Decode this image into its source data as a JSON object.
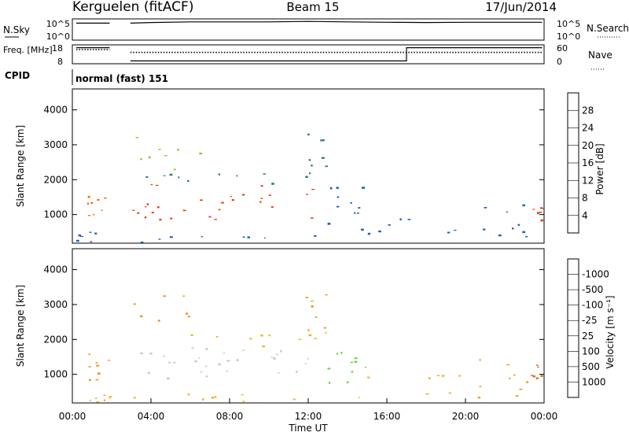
{
  "header": {
    "station": "Kerguelen (fitACF)",
    "beam": "Beam 15",
    "date": "17/Jun/2014"
  },
  "chart_data": [
    {
      "type": "line",
      "panel": "noise",
      "left_label": "N.Sky",
      "right_label": "N.Search",
      "left_ticks": [
        "10^5",
        "10^0"
      ],
      "right_ticks": [
        "10^5",
        "10^0"
      ],
      "gaps_ut_hours": [
        [
          1.9,
          2.95
        ]
      ],
      "series": [
        {
          "name": "N.Sky",
          "style": "solid",
          "segments": [
            {
              "x": [
                0.2,
                1.9
              ],
              "y": [
                0.8,
                0.8
              ]
            },
            {
              "x": [
                2.95,
                4.0,
                6.0,
                8.0,
                10.0,
                12.0,
                14.0,
                16.0,
                18.0,
                20.0,
                22.0,
                23.9
              ],
              "y": [
                0.8,
                0.83,
                0.86,
                0.86,
                0.86,
                0.88,
                0.86,
                0.84,
                0.83,
                0.84,
                0.84,
                0.84
              ]
            }
          ]
        },
        {
          "name": "N.Search",
          "style": "dotted",
          "segments": []
        }
      ]
    },
    {
      "type": "line",
      "panel": "frequency",
      "left_label": "Freq. [MHz]",
      "right_label": "Nave",
      "left_ticks": [
        "18",
        "8"
      ],
      "right_ticks": [
        "60",
        "0"
      ],
      "series": [
        {
          "name": "Freq.",
          "style": "solid",
          "segments": [
            {
              "x": [
                0.2,
                1.9
              ],
              "y": [
                0.85,
                0.85
              ]
            },
            {
              "x": [
                2.95,
                17.0,
                17.0,
                23.9
              ],
              "y": [
                0.15,
                0.15,
                0.85,
                0.85
              ]
            }
          ]
        },
        {
          "name": "Nave",
          "style": "dotted",
          "segments": [
            {
              "x": [
                0.2,
                1.9
              ],
              "y": [
                0.75,
                0.75
              ]
            },
            {
              "x": [
                2.95,
                23.9
              ],
              "y": [
                0.6,
                0.6
              ]
            }
          ]
        }
      ]
    },
    {
      "type": "text",
      "panel": "cpid",
      "label": "CPID",
      "value": "normal (fast) 151"
    },
    {
      "type": "heatmap",
      "panel": "power",
      "ylabel": "Slant Range [km]",
      "y_ticks": [
        "1000",
        "2000",
        "3000",
        "4000"
      ],
      "ylim": [
        180,
        4600
      ],
      "colorbar": {
        "label": "Power [dB]",
        "ticks": [
          "4",
          "8",
          "12",
          "16",
          "20",
          "24",
          "28"
        ],
        "colors": [
          "#1230ff",
          "#1e5fbf",
          "#2d7f6a",
          "#3e9c3e",
          "#8cc83c",
          "#e6d23c",
          "#f0a028",
          "#f06e14",
          "#e63c14",
          "#e61414"
        ]
      },
      "regions": [
        {
          "t0": 0.2,
          "t1": 1.9,
          "r0": 200,
          "r1": 520,
          "color": "#1e5fbf",
          "density": 0.35
        },
        {
          "t0": 0.7,
          "t1": 1.9,
          "r0": 800,
          "r1": 1600,
          "color": "#f06e14",
          "density": 0.6
        },
        {
          "t0": 3.0,
          "t1": 12.2,
          "r0": 800,
          "r1": 1900,
          "color": "#e63c14",
          "density": 0.65
        },
        {
          "t0": 3.0,
          "t1": 12.4,
          "r0": 1900,
          "r1": 2200,
          "color": "#2d7f6a",
          "density": 0.4
        },
        {
          "t0": 3.0,
          "t1": 6.5,
          "r0": 2300,
          "r1": 3300,
          "color": "#8cc83c",
          "density": 0.15
        },
        {
          "t0": 3.0,
          "t1": 12.4,
          "r0": 200,
          "r1": 500,
          "color": "#1e5fbf",
          "density": 0.25
        },
        {
          "t0": 11.8,
          "t1": 12.9,
          "r0": 2200,
          "r1": 3400,
          "color": "#2d7f6a",
          "density": 0.35
        },
        {
          "t0": 12.3,
          "t1": 15.0,
          "r0": 700,
          "r1": 1800,
          "color": "#1e5fbf",
          "density": 0.45
        },
        {
          "t0": 14.5,
          "t1": 20.0,
          "r0": 300,
          "r1": 1000,
          "color": "#1e5fbf",
          "density": 0.18
        },
        {
          "t0": 20.5,
          "t1": 23.3,
          "r0": 300,
          "r1": 1500,
          "color": "#1e5fbf",
          "density": 0.3
        },
        {
          "t0": 23.3,
          "t1": 23.9,
          "r0": 800,
          "r1": 1300,
          "color": "#e63c14",
          "density": 0.7
        }
      ]
    },
    {
      "type": "heatmap",
      "panel": "velocity",
      "ylabel": "Slant Range [km]",
      "xlabel": "Time UT",
      "y_ticks": [
        "1000",
        "2000",
        "3000",
        "4000"
      ],
      "x_ticks": [
        "00:00",
        "04:00",
        "08:00",
        "12:00",
        "16:00",
        "20:00",
        "00:00"
      ],
      "xlim": [
        0,
        24
      ],
      "ylim": [
        180,
        4600
      ],
      "colorbar": {
        "label": "Velocity [m s⁻¹]",
        "ticks": [
          "1000",
          "500",
          "100",
          "25",
          "-25",
          "-100",
          "-500",
          "-1000"
        ],
        "colors": [
          "#1230ff",
          "#1e5fbf",
          "#2d7f6a",
          "#3e9c3e",
          "#6ad23c",
          "#c8c8c0",
          "#f0b428",
          "#f09614",
          "#e66e14",
          "#e63c14",
          "#e61414"
        ]
      },
      "regions": [
        {
          "t0": 0.2,
          "t1": 1.9,
          "r0": 200,
          "r1": 520,
          "color": "#f0b428",
          "density": 0.3
        },
        {
          "t0": 0.7,
          "t1": 1.9,
          "r0": 800,
          "r1": 1600,
          "color": "#f09614",
          "density": 0.6
        },
        {
          "t0": 3.0,
          "t1": 12.2,
          "r0": 800,
          "r1": 1800,
          "color": "#c8c8c0",
          "density": 0.75
        },
        {
          "t0": 3.0,
          "t1": 12.4,
          "r0": 1800,
          "r1": 2200,
          "color": "#f0b428",
          "density": 0.25
        },
        {
          "t0": 3.0,
          "t1": 6.5,
          "r0": 2300,
          "r1": 3300,
          "color": "#f09614",
          "density": 0.12
        },
        {
          "t0": 3.0,
          "t1": 12.4,
          "r0": 200,
          "r1": 500,
          "color": "#f0b428",
          "density": 0.25
        },
        {
          "t0": 11.8,
          "t1": 12.9,
          "r0": 2200,
          "r1": 3400,
          "color": "#f09614",
          "density": 0.35
        },
        {
          "t0": 12.3,
          "t1": 15.0,
          "r0": 700,
          "r1": 1800,
          "color": "#6ad23c",
          "density": 0.45
        },
        {
          "t0": 14.5,
          "t1": 20.0,
          "r0": 300,
          "r1": 1000,
          "color": "#f0b428",
          "density": 0.18
        },
        {
          "t0": 20.5,
          "t1": 23.3,
          "r0": 300,
          "r1": 1500,
          "color": "#f09614",
          "density": 0.3
        },
        {
          "t0": 23.3,
          "t1": 23.9,
          "r0": 800,
          "r1": 1300,
          "color": "#e66e14",
          "density": 0.7
        }
      ]
    }
  ]
}
